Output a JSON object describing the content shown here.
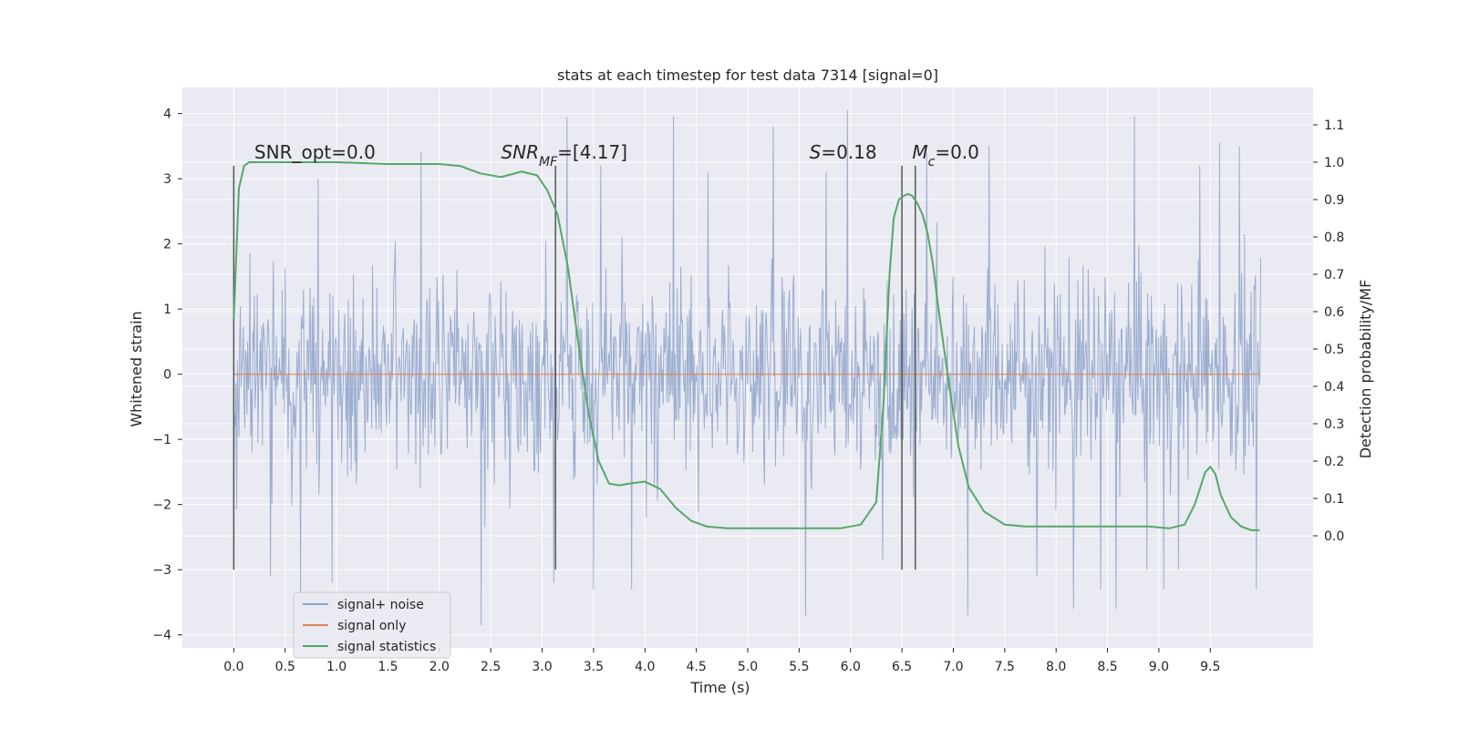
{
  "chart_data": {
    "type": "line",
    "title": "stats at each timestep for test data 7314 [signal=0]",
    "xlabel": "Time (s)",
    "ylabel": "Whitened strain",
    "ylabel_right": "Detection probability/MF",
    "xlim": [
      -0.5,
      10.5
    ],
    "ylim": [
      -4.2,
      4.4
    ],
    "ylim_right": [
      -0.3,
      1.2
    ],
    "x_ticks": [
      0.0,
      0.5,
      1.0,
      1.5,
      2.0,
      2.5,
      3.0,
      3.5,
      4.0,
      4.5,
      5.0,
      5.5,
      6.0,
      6.5,
      7.0,
      7.5,
      8.0,
      8.5,
      9.0,
      9.5
    ],
    "x_tick_labels": [
      "0.0",
      "0.5",
      "1.0",
      "1.5",
      "2.0",
      "2.5",
      "3.0",
      "3.5",
      "4.0",
      "4.5",
      "5.0",
      "5.5",
      "6.0",
      "6.5",
      "7.0",
      "7.5",
      "8.0",
      "8.5",
      "9.0",
      "9.5"
    ],
    "y_ticks": [
      -4,
      -3,
      -2,
      -1,
      0,
      1,
      2,
      3,
      4
    ],
    "y_tick_labels": [
      "−4",
      "−3",
      "−2",
      "−1",
      "0",
      "1",
      "2",
      "3",
      "4"
    ],
    "y_right_ticks": [
      0.0,
      0.1,
      0.2,
      0.3,
      0.4,
      0.5,
      0.6,
      0.7,
      0.8,
      0.9,
      1.0,
      1.1
    ],
    "y_right_tick_labels": [
      "0.0",
      "0.1",
      "0.2",
      "0.3",
      "0.4",
      "0.5",
      "0.6",
      "0.7",
      "0.8",
      "0.9",
      "1.0",
      "1.1"
    ],
    "grid": true,
    "legend_placement": "lower-left",
    "series": [
      {
        "name": "signal+ noise",
        "axis": "left",
        "color": "#4c72b0",
        "x_range": [
          0.0,
          9.99
        ],
        "typical_range": [
          -2.0,
          2.0
        ],
        "peaks": [
          [
            0.36,
            -3.1
          ],
          [
            0.65,
            -3.35
          ],
          [
            0.82,
            3.0
          ],
          [
            0.96,
            -3.2
          ],
          [
            1.82,
            3.4
          ],
          [
            2.41,
            -3.85
          ],
          [
            3.11,
            -3.2
          ],
          [
            3.24,
            3.95
          ],
          [
            3.5,
            -3.3
          ],
          [
            3.57,
            3.2
          ],
          [
            3.87,
            -3.3
          ],
          [
            4.28,
            3.95
          ],
          [
            4.61,
            3.1
          ],
          [
            5.25,
            3.8
          ],
          [
            5.56,
            -3.7
          ],
          [
            5.76,
            3.1
          ],
          [
            5.97,
            4.05
          ],
          [
            6.31,
            -2.85
          ],
          [
            6.74,
            3.4
          ],
          [
            7.14,
            -3.7
          ],
          [
            7.35,
            3.5
          ],
          [
            7.81,
            -3.1
          ],
          [
            8.17,
            -3.6
          ],
          [
            8.43,
            -3.3
          ],
          [
            8.58,
            -3.6
          ],
          [
            8.76,
            3.95
          ],
          [
            8.88,
            -3.0
          ],
          [
            9.05,
            -3.3
          ],
          [
            9.19,
            -3.0
          ],
          [
            9.4,
            3.2
          ],
          [
            9.59,
            3.55
          ],
          [
            9.78,
            3.5
          ],
          [
            9.95,
            -3.3
          ]
        ]
      },
      {
        "name": "signal only",
        "axis": "left",
        "color": "#dd8452",
        "x": [
          0.0,
          9.99
        ],
        "y": [
          0.0,
          0.0
        ]
      },
      {
        "name": "signal statistics",
        "axis": "right",
        "color": "#55a868",
        "x": [
          0.0,
          0.05,
          0.1,
          0.15,
          0.2,
          0.3,
          0.5,
          1.0,
          1.5,
          1.8,
          2.0,
          2.2,
          2.4,
          2.6,
          2.8,
          2.95,
          3.05,
          3.15,
          3.25,
          3.35,
          3.45,
          3.55,
          3.65,
          3.75,
          3.85,
          4.0,
          4.15,
          4.3,
          4.45,
          4.6,
          4.8,
          5.0,
          5.3,
          5.6,
          5.9,
          6.1,
          6.25,
          6.32,
          6.38,
          6.42,
          6.47,
          6.52,
          6.56,
          6.6,
          6.65,
          6.7,
          6.75,
          6.8,
          6.85,
          6.95,
          7.05,
          7.15,
          7.3,
          7.5,
          7.7,
          7.9,
          8.1,
          8.3,
          8.5,
          8.7,
          8.9,
          9.1,
          9.25,
          9.35,
          9.45,
          9.5,
          9.55,
          9.6,
          9.7,
          9.8,
          9.9,
          9.98
        ],
        "y": [
          0.58,
          0.93,
          0.99,
          1.0,
          1.0,
          1.0,
          1.0,
          1.0,
          0.995,
          0.995,
          0.995,
          0.99,
          0.97,
          0.96,
          0.975,
          0.965,
          0.925,
          0.86,
          0.72,
          0.52,
          0.33,
          0.2,
          0.14,
          0.135,
          0.14,
          0.145,
          0.125,
          0.075,
          0.04,
          0.025,
          0.02,
          0.02,
          0.02,
          0.02,
          0.02,
          0.03,
          0.09,
          0.35,
          0.7,
          0.85,
          0.9,
          0.91,
          0.915,
          0.91,
          0.89,
          0.86,
          0.81,
          0.73,
          0.62,
          0.42,
          0.24,
          0.13,
          0.065,
          0.03,
          0.025,
          0.025,
          0.025,
          0.025,
          0.025,
          0.025,
          0.025,
          0.02,
          0.03,
          0.085,
          0.17,
          0.185,
          0.165,
          0.11,
          0.05,
          0.025,
          0.015,
          0.015
        ]
      }
    ],
    "vlines": [
      {
        "x": 0.0,
        "y": [
          -3.0,
          3.2
        ]
      },
      {
        "x": 3.13,
        "y": [
          -3.0,
          3.2
        ]
      },
      {
        "x": 6.5,
        "y": [
          -3.0,
          3.2
        ]
      },
      {
        "x": 6.63,
        "y": [
          -3.0,
          3.2
        ]
      }
    ],
    "annotations": [
      {
        "x": 0.2,
        "y": 3.2,
        "parts": [
          {
            "t": "SNR_opt=0.0"
          }
        ]
      },
      {
        "x": 2.6,
        "y": 3.2,
        "parts": [
          {
            "t": "SNR",
            "i": true
          },
          {
            "t": "MF",
            "i": true,
            "sub": true
          },
          {
            "t": "=[4.17]"
          }
        ]
      },
      {
        "x": 5.6,
        "y": 3.2,
        "parts": [
          {
            "t": "S",
            "i": true
          },
          {
            "t": "=0.18"
          }
        ]
      },
      {
        "x": 6.6,
        "y": 3.2,
        "parts": [
          {
            "t": "M",
            "i": true
          },
          {
            "t": "c",
            "i": true,
            "sub": true
          },
          {
            "t": "=0.0"
          }
        ]
      }
    ]
  },
  "colors": {
    "plot_background": "#eaeaf2",
    "grid": "#ffffff",
    "vline": "#555555",
    "text": "#262626"
  }
}
